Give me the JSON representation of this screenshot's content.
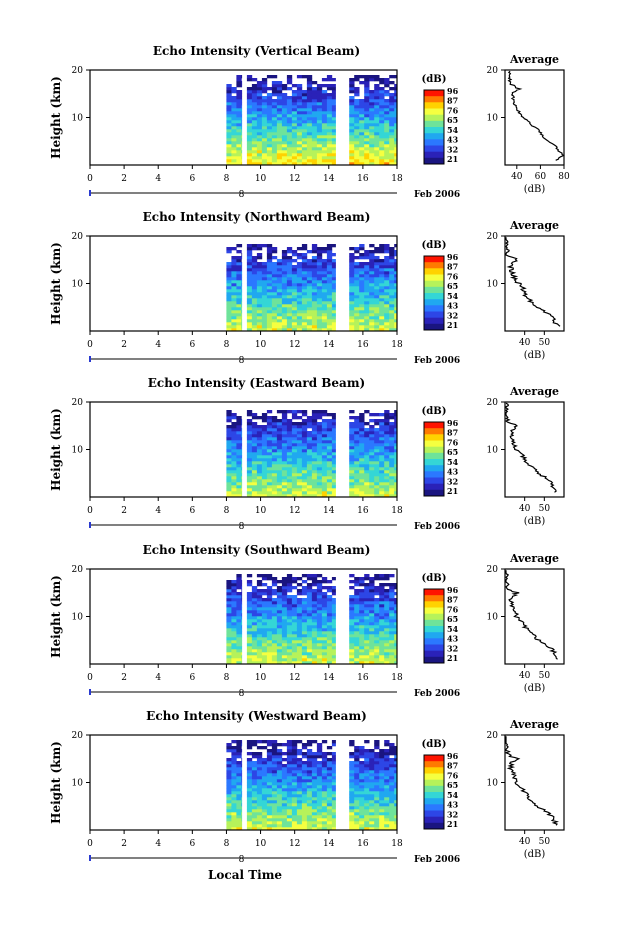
{
  "figure": {
    "xlabel": "Local Time",
    "date_label": "Feb 2006",
    "date_marker": "8",
    "colorbar_unit": "(dB)",
    "colorbar_ticks": [
      "96",
      "87",
      "76",
      "65",
      "54",
      "43",
      "32",
      "21"
    ],
    "colorbar_colors": [
      "#ff1400",
      "#ff7a00",
      "#ffd200",
      "#f5ff40",
      "#b6f25a",
      "#6ee39a",
      "#34d6d6",
      "#20a8f0",
      "#2b78ff",
      "#2d46e6",
      "#2a22b8",
      "#1a1580"
    ],
    "profile_title": "Average",
    "profile_xlabel": "(dB)"
  },
  "chart_data": [
    {
      "type": "heatmap",
      "title": "Echo Intensity (Vertical Beam)",
      "ylabel": "Height (km)",
      "xlim": [
        0,
        18
      ],
      "ylim": [
        0,
        20
      ],
      "xticks": [
        "0",
        "2",
        "4",
        "6",
        "8",
        "10",
        "12",
        "14",
        "16",
        "18"
      ],
      "yticks": [
        "10",
        "20"
      ],
      "data_intervals": [
        [
          8.0,
          8.9
        ],
        [
          9.2,
          14.4
        ],
        [
          15.2,
          18.0
        ]
      ],
      "upper_data_limit_km": 19.5,
      "profile": {
        "xlim": [
          30,
          80
        ],
        "xticks": [
          "40",
          "60",
          "80"
        ],
        "heights": [
          1,
          2,
          3,
          4,
          5,
          6,
          7,
          8,
          9,
          10,
          11,
          12,
          13,
          14,
          15,
          16,
          17,
          18,
          19,
          20
        ],
        "values": [
          74,
          79,
          76,
          72,
          68,
          62,
          60,
          55,
          50,
          46,
          42,
          40,
          38,
          37,
          36,
          42,
          35,
          34,
          33,
          35
        ]
      }
    },
    {
      "type": "heatmap",
      "title": "Echo Intensity (Northward Beam)",
      "ylabel": "Height (km)",
      "xlim": [
        0,
        18
      ],
      "ylim": [
        0,
        20
      ],
      "xticks": [
        "0",
        "2",
        "4",
        "6",
        "8",
        "10",
        "12",
        "14",
        "16",
        "18"
      ],
      "yticks": [
        "10",
        "20"
      ],
      "data_intervals": [
        [
          8.0,
          8.9
        ],
        [
          9.2,
          14.4
        ],
        [
          15.2,
          18.0
        ]
      ],
      "upper_data_limit_km": 18.5,
      "profile": {
        "xlim": [
          30,
          60
        ],
        "xticks": [
          "40",
          "50"
        ],
        "heights": [
          1,
          2,
          3,
          4,
          5,
          6,
          7,
          8,
          9,
          10,
          11,
          12,
          13,
          14,
          15,
          16,
          17,
          18,
          19,
          20
        ],
        "values": [
          57,
          55,
          54,
          50,
          46,
          44,
          41,
          40,
          39,
          37,
          35,
          34,
          33,
          33,
          36,
          31,
          31,
          30,
          31,
          30
        ]
      }
    },
    {
      "type": "heatmap",
      "title": "Echo Intensity (Eastward Beam)",
      "ylabel": "Height (km)",
      "xlim": [
        0,
        18
      ],
      "ylim": [
        0,
        20
      ],
      "xticks": [
        "0",
        "2",
        "4",
        "6",
        "8",
        "10",
        "12",
        "14",
        "16",
        "18"
      ],
      "yticks": [
        "10",
        "20"
      ],
      "data_intervals": [
        [
          8.0,
          8.9
        ],
        [
          9.2,
          14.4
        ],
        [
          15.2,
          18.0
        ]
      ],
      "upper_data_limit_km": 18.5,
      "profile": {
        "xlim": [
          30,
          60
        ],
        "xticks": [
          "40",
          "50"
        ],
        "heights": [
          1,
          2,
          3,
          4,
          5,
          6,
          7,
          8,
          9,
          10,
          11,
          12,
          13,
          14,
          15,
          16,
          17,
          18,
          19,
          20
        ],
        "values": [
          56,
          55,
          54,
          51,
          47,
          44,
          42,
          40,
          38,
          36,
          35,
          34,
          33,
          33,
          36,
          31,
          31,
          30,
          31,
          30
        ]
      }
    },
    {
      "type": "heatmap",
      "title": "Echo Intensity (Southward Beam)",
      "ylabel": "Height (km)",
      "xlim": [
        0,
        18
      ],
      "ylim": [
        0,
        20
      ],
      "xticks": [
        "0",
        "2",
        "4",
        "6",
        "8",
        "10",
        "12",
        "14",
        "16",
        "18"
      ],
      "yticks": [
        "10",
        "20"
      ],
      "data_intervals": [
        [
          8.0,
          8.9
        ],
        [
          9.2,
          14.4
        ],
        [
          15.2,
          18.0
        ]
      ],
      "upper_data_limit_km": 19.0,
      "profile": {
        "xlim": [
          30,
          60
        ],
        "xticks": [
          "40",
          "50"
        ],
        "heights": [
          1,
          2,
          3,
          4,
          5,
          6,
          7,
          8,
          9,
          10,
          11,
          12,
          13,
          14,
          15,
          16,
          17,
          18,
          19,
          20
        ],
        "values": [
          57,
          56,
          54,
          51,
          47,
          45,
          42,
          40,
          38,
          36,
          35,
          34,
          33,
          33,
          36,
          31,
          31,
          30,
          31,
          30
        ]
      }
    },
    {
      "type": "heatmap",
      "title": "Echo Intensity (Westward Beam)",
      "ylabel": "Height (km)",
      "xlim": [
        0,
        18
      ],
      "ylim": [
        0,
        20
      ],
      "xticks": [
        "0",
        "2",
        "4",
        "6",
        "8",
        "10",
        "12",
        "14",
        "16",
        "18"
      ],
      "yticks": [
        "10",
        "20"
      ],
      "data_intervals": [
        [
          8.0,
          8.9
        ],
        [
          9.2,
          14.4
        ],
        [
          15.2,
          18.0
        ]
      ],
      "upper_data_limit_km": 19.0,
      "profile": {
        "xlim": [
          30,
          60
        ],
        "xticks": [
          "40",
          "50"
        ],
        "heights": [
          1,
          2,
          3,
          4,
          5,
          6,
          7,
          8,
          9,
          10,
          11,
          12,
          13,
          14,
          15,
          16,
          17,
          18,
          19,
          20
        ],
        "values": [
          56,
          55,
          54,
          50,
          47,
          44,
          42,
          40,
          38,
          36,
          35,
          34,
          33,
          33,
          36,
          31,
          31,
          30,
          31,
          30
        ]
      }
    }
  ]
}
